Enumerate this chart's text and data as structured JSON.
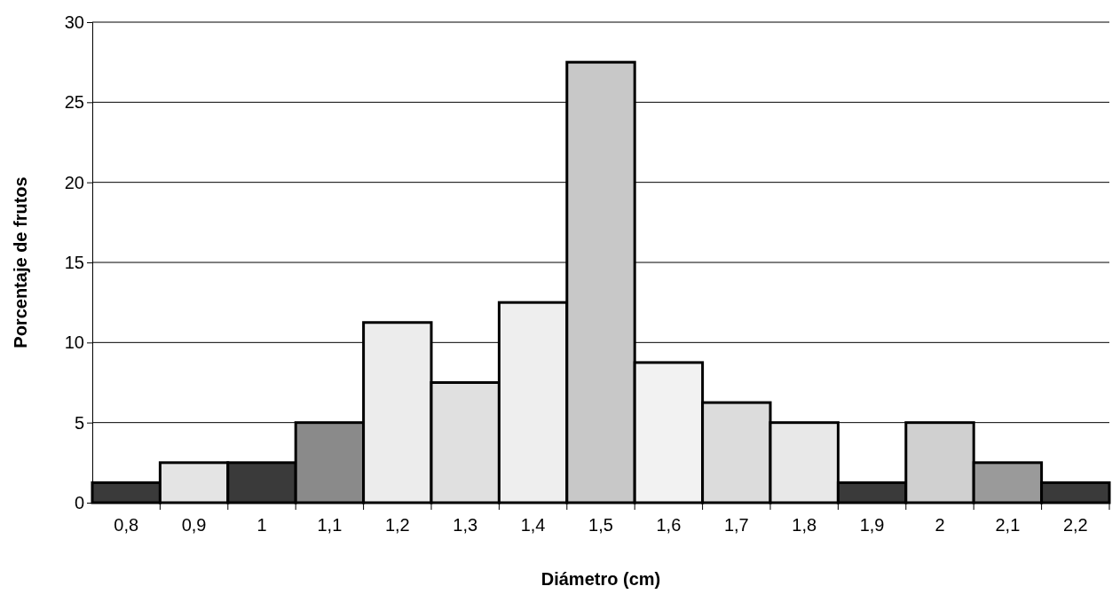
{
  "chart_data": {
    "type": "bar",
    "xlabel": "Diámetro (cm)",
    "ylabel": "Porcentaje de frutos",
    "categories": [
      "0,8",
      "0,9",
      "1",
      "1,1",
      "1,2",
      "1,3",
      "1,4",
      "1,5",
      "1,6",
      "1,7",
      "1,8",
      "1,9",
      "2",
      "2,1",
      "2,2"
    ],
    "values": [
      1.25,
      2.5,
      2.5,
      5,
      11.25,
      7.5,
      12.5,
      27.5,
      8.75,
      6.25,
      5,
      1.25,
      5,
      2.5,
      1.25
    ],
    "colors": [
      "#3a3a3a",
      "#e4e4e4",
      "#3a3a3a",
      "#8a8a8a",
      "#ececec",
      "#e0e0e0",
      "#eeeeee",
      "#c8c8c8",
      "#f2f2f2",
      "#dcdcdc",
      "#e8e8e8",
      "#3a3a3a",
      "#d0d0d0",
      "#9a9a9a",
      "#3a3a3a"
    ],
    "ylim": [
      0,
      30
    ],
    "yticks": [
      0,
      5,
      10,
      15,
      20,
      25,
      30
    ],
    "grid": "y"
  }
}
